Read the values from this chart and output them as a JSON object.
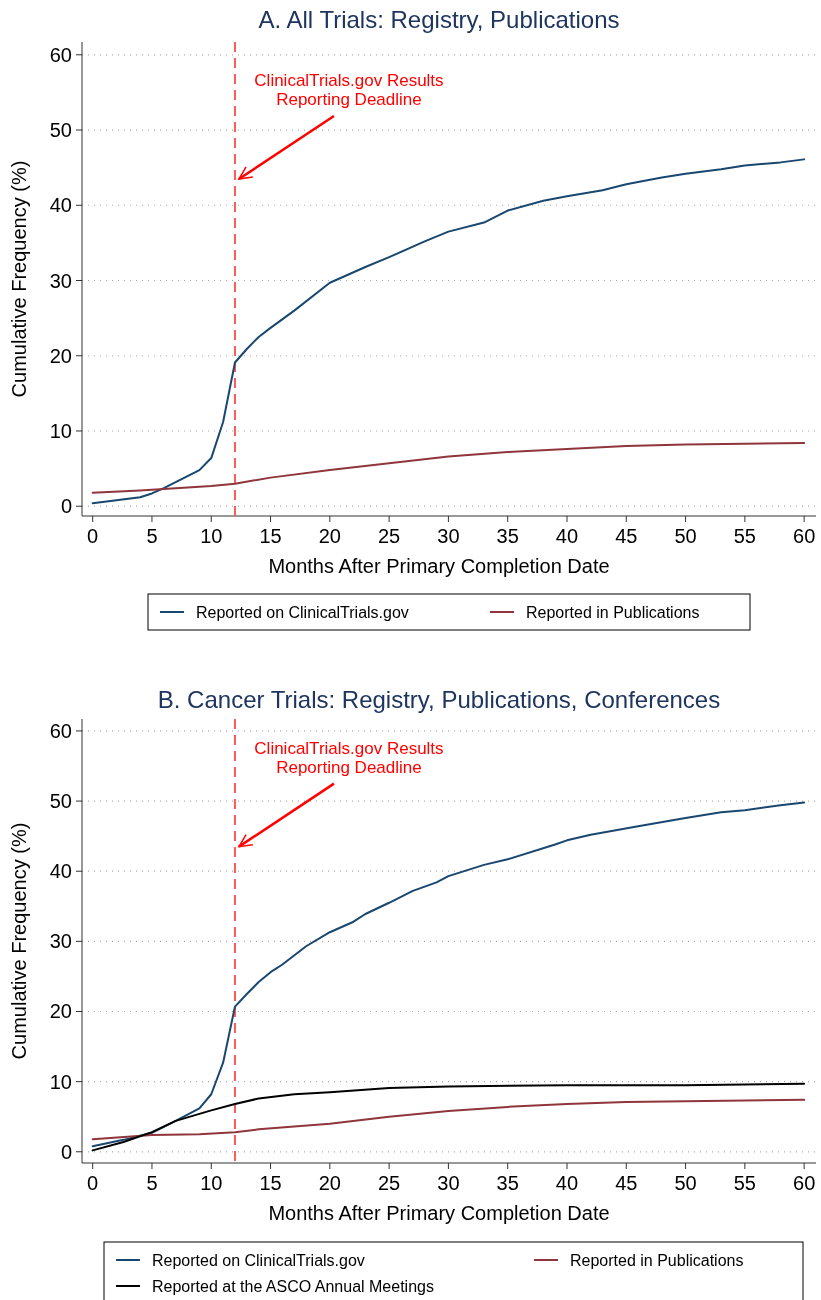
{
  "chart_data": [
    {
      "type": "line",
      "title": "A. All Trials: Registry, Publications",
      "xlabel": "Months After Primary Completion Date",
      "ylabel": "Cumulative Frequency (%)",
      "xlim": [
        -0.9,
        61
      ],
      "ylim": [
        -1.3,
        61.7
      ],
      "xticks": [
        0,
        5,
        10,
        15,
        20,
        25,
        30,
        35,
        40,
        45,
        50,
        55,
        60
      ],
      "yticks": [
        0,
        10,
        20,
        30,
        40,
        50,
        60
      ],
      "grid": "y",
      "legend": "bottom",
      "line_style": "solid",
      "marker": "none",
      "ref_lines": [
        {
          "axis": "x",
          "value": 12,
          "color": "#ff5a5a",
          "line_style": "dashed"
        }
      ],
      "annotations": [
        {
          "text": "ClinicalTrials.gov Results\nReporting Deadline",
          "x": 12,
          "y": 43.5
        }
      ],
      "series": [
        {
          "name": "Reported on ClinicalTrials.gov",
          "color": "#1a476f",
          "x": [
            0,
            2,
            4,
            5,
            6,
            7,
            8,
            9,
            10,
            11,
            12,
            13,
            14,
            15,
            17,
            20,
            23,
            25,
            28,
            30,
            33,
            35,
            38,
            40,
            43,
            45,
            48,
            50,
            53,
            55,
            58,
            60
          ],
          "values": [
            0.4,
            0.8,
            1.2,
            1.7,
            2.4,
            3.2,
            4.0,
            4.8,
            6.4,
            11.2,
            19.1,
            20.9,
            22.5,
            23.7,
            26.0,
            29.7,
            31.8,
            33.1,
            35.2,
            36.5,
            37.7,
            39.3,
            40.6,
            41.2,
            42.0,
            42.8,
            43.7,
            44.2,
            44.8,
            45.3,
            45.7,
            46.1
          ]
        },
        {
          "name": "Reported in Publications",
          "color": "#90353b",
          "x": [
            0,
            4,
            5,
            8,
            10,
            12,
            15,
            20,
            25,
            30,
            35,
            40,
            45,
            50,
            55,
            60
          ],
          "values": [
            1.8,
            2.1,
            2.2,
            2.5,
            2.7,
            3.0,
            3.8,
            4.8,
            5.7,
            6.6,
            7.2,
            7.6,
            8.0,
            8.2,
            8.3,
            8.4
          ]
        }
      ]
    },
    {
      "type": "line",
      "title": "B. Cancer Trials: Registry, Publications, Conferences",
      "xlabel": "Months After Primary Completion Date",
      "ylabel": "Cumulative Frequency (%)",
      "xlim": [
        -0.9,
        61
      ],
      "ylim": [
        -1.6,
        61.7
      ],
      "xticks": [
        0,
        5,
        10,
        15,
        20,
        25,
        30,
        35,
        40,
        45,
        50,
        55,
        60
      ],
      "yticks": [
        0,
        10,
        20,
        30,
        40,
        50,
        60
      ],
      "grid": "y",
      "legend": "bottom",
      "line_style": "solid",
      "marker": "none",
      "ref_lines": [
        {
          "axis": "x",
          "value": 12,
          "color": "#ff5a5a",
          "line_style": "dashed"
        }
      ],
      "annotations": [
        {
          "text": "ClinicalTrials.gov Results\nReporting Deadline",
          "x": 12,
          "y": 43.5
        }
      ],
      "series": [
        {
          "name": "Reported on ClinicalTrials.gov",
          "color": "#1a476f",
          "x": [
            0,
            2.6,
            5,
            7,
            9,
            10,
            11,
            12,
            13,
            14,
            15,
            16,
            18,
            20,
            22,
            23,
            25,
            27,
            29,
            30,
            33,
            35,
            39,
            40,
            42,
            44,
            46,
            50,
            53,
            55,
            58,
            60
          ],
          "values": [
            0.8,
            1.7,
            2.7,
            4.4,
            6.2,
            8.2,
            12.7,
            20.7,
            22.5,
            24.2,
            25.6,
            26.7,
            29.3,
            31.3,
            32.8,
            33.9,
            35.5,
            37.2,
            38.4,
            39.3,
            40.9,
            41.7,
            43.8,
            44.4,
            45.2,
            45.8,
            46.4,
            47.6,
            48.4,
            48.7,
            49.4,
            49.8
          ]
        },
        {
          "name": "Reported in Publications",
          "color": "#90353b",
          "x": [
            0,
            5,
            9,
            12,
            14,
            17,
            20,
            25,
            30,
            35,
            40,
            45,
            50,
            55,
            60
          ],
          "values": [
            1.8,
            2.4,
            2.5,
            2.8,
            3.2,
            3.6,
            4.0,
            5.0,
            5.8,
            6.4,
            6.8,
            7.1,
            7.2,
            7.3,
            7.4
          ]
        },
        {
          "name": "Reported at the ASCO Annual Meetings",
          "color": "#000000",
          "x": [
            0,
            2.6,
            5,
            7,
            10,
            12,
            14,
            17,
            20,
            25,
            30,
            40,
            50,
            60
          ],
          "values": [
            0.2,
            1.4,
            2.8,
            4.4,
            5.9,
            6.8,
            7.6,
            8.2,
            8.5,
            9.1,
            9.3,
            9.5,
            9.5,
            9.7
          ]
        }
      ]
    }
  ]
}
